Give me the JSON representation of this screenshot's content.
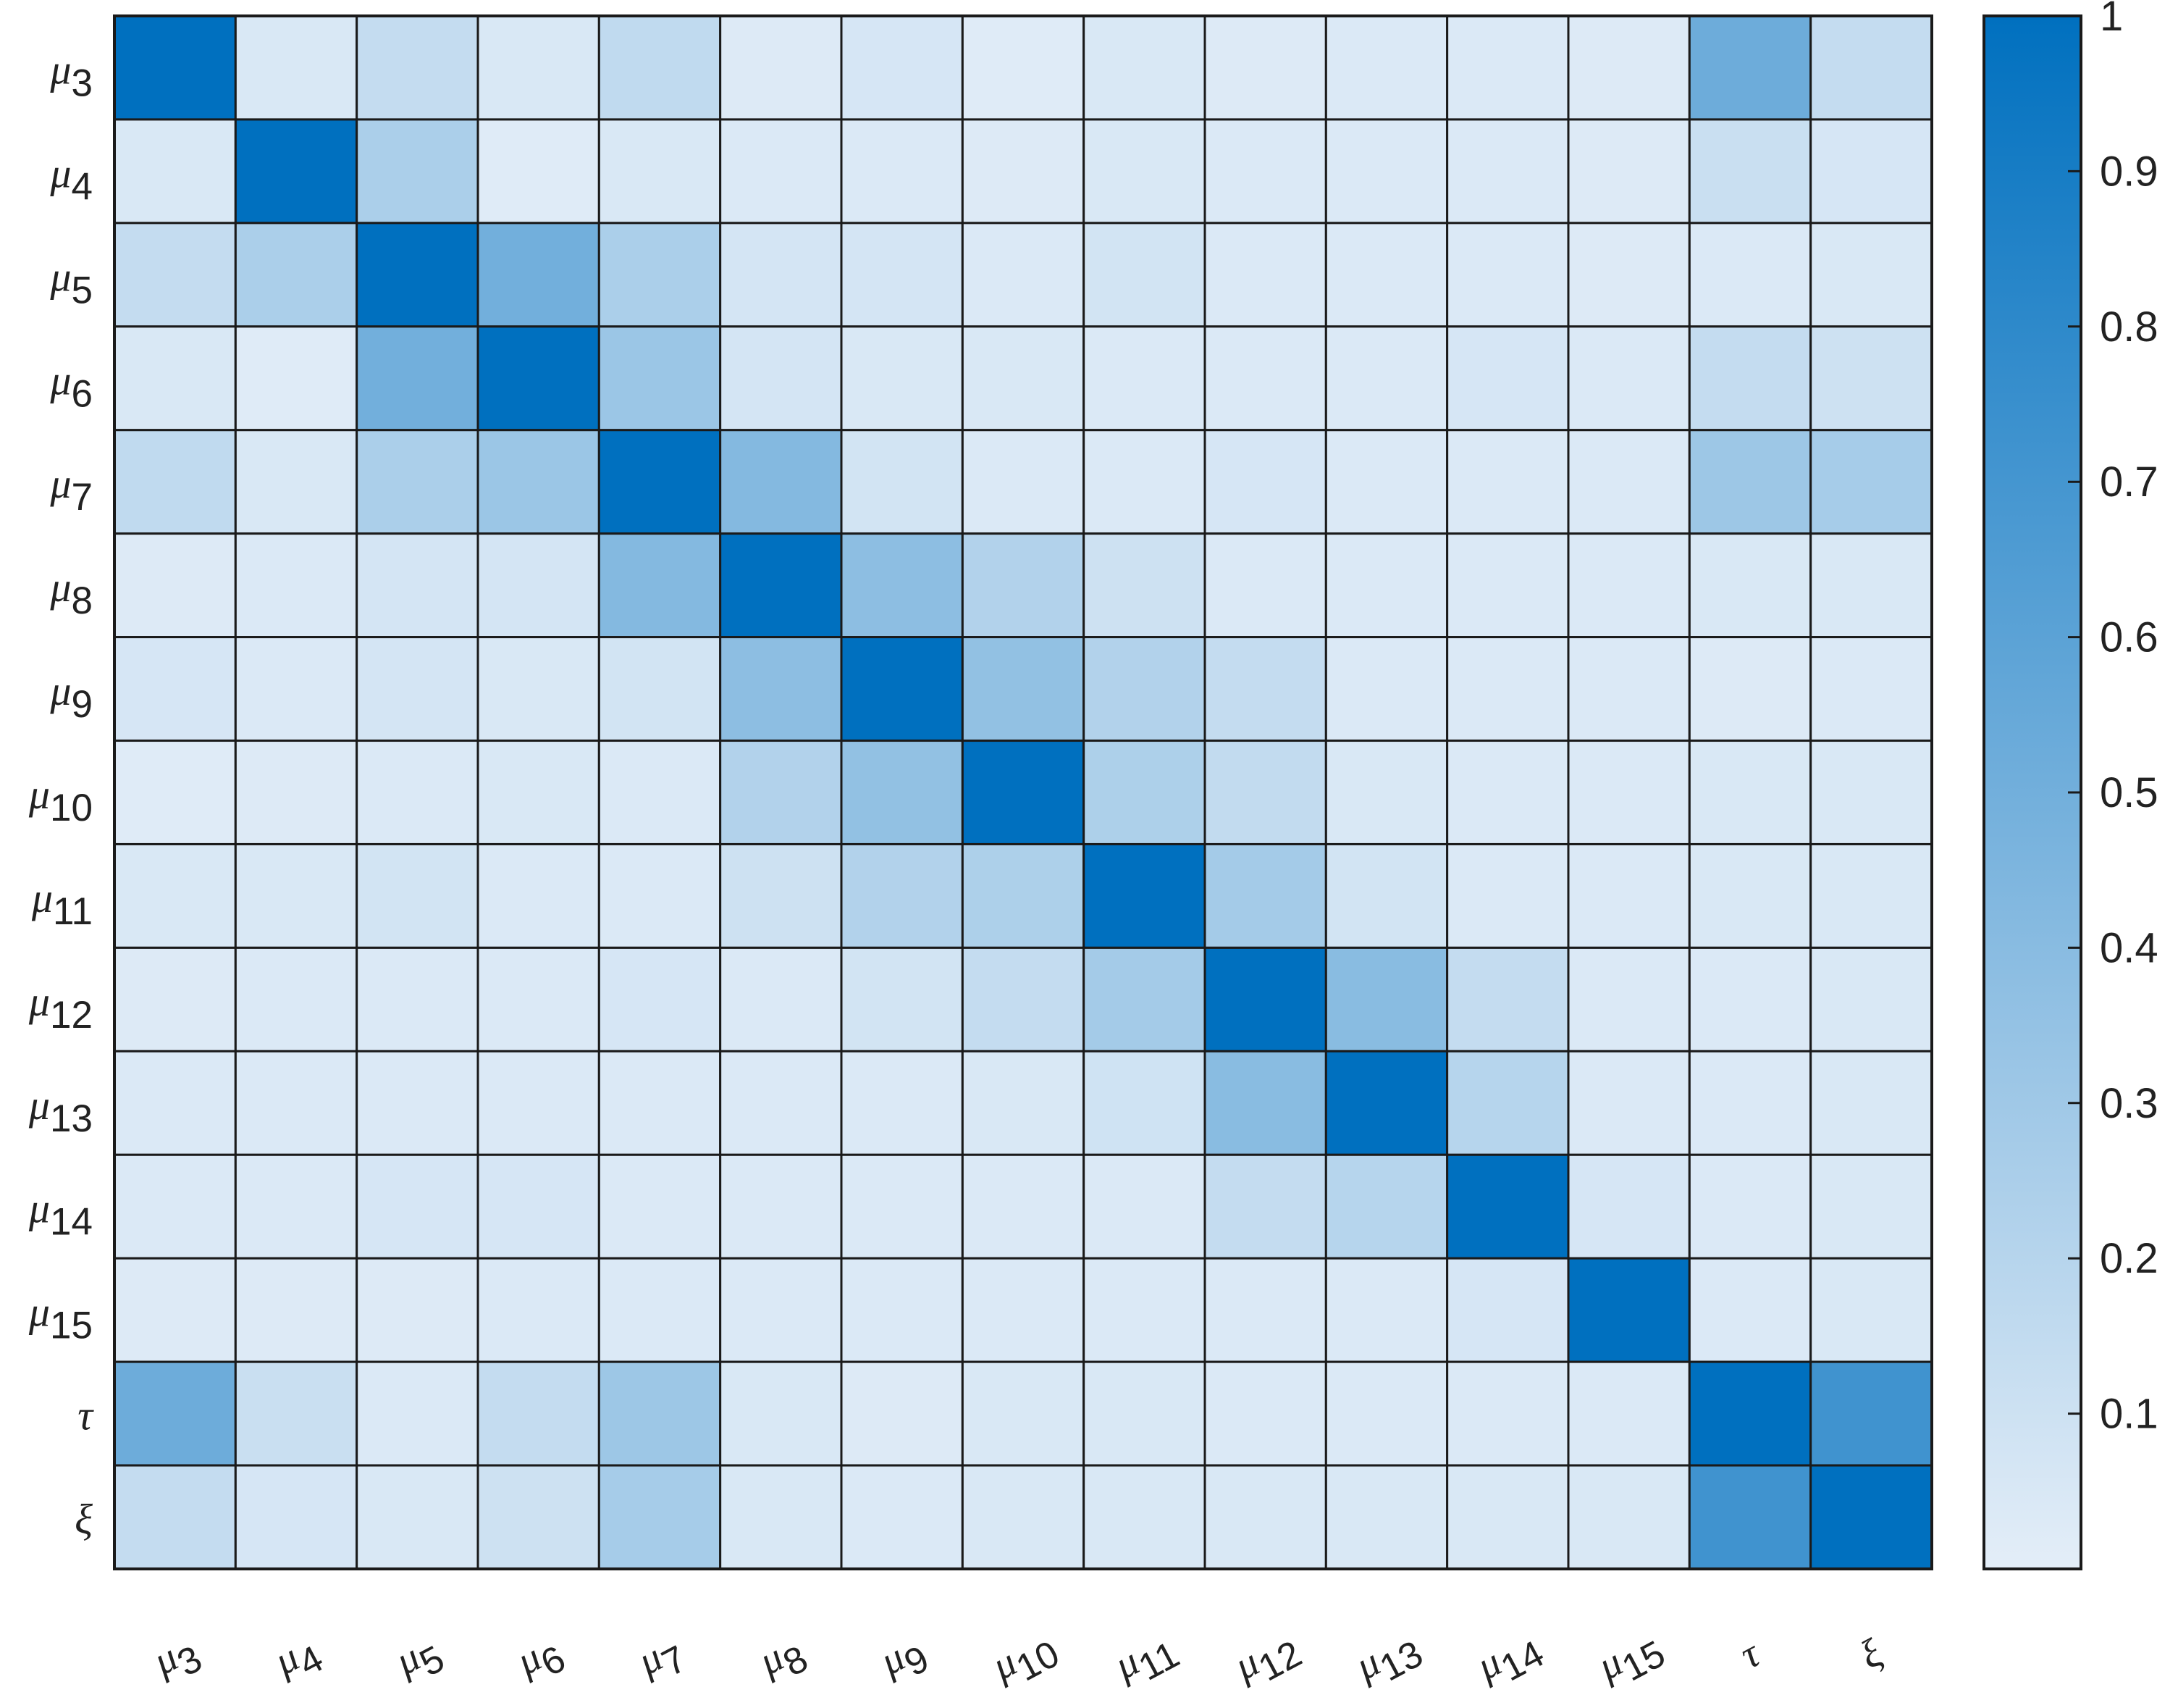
{
  "chart_data": {
    "type": "heatmap",
    "title": "",
    "xlabel": "",
    "ylabel": "",
    "labels": [
      {
        "base": "μ",
        "sub": "3"
      },
      {
        "base": "μ",
        "sub": "4"
      },
      {
        "base": "μ",
        "sub": "5"
      },
      {
        "base": "μ",
        "sub": "6"
      },
      {
        "base": "μ",
        "sub": "7"
      },
      {
        "base": "μ",
        "sub": "8"
      },
      {
        "base": "μ",
        "sub": "9"
      },
      {
        "base": "μ",
        "sub": "10"
      },
      {
        "base": "μ",
        "sub": "11"
      },
      {
        "base": "μ",
        "sub": "12"
      },
      {
        "base": "μ",
        "sub": "13"
      },
      {
        "base": "μ",
        "sub": "14"
      },
      {
        "base": "μ",
        "sub": "15"
      },
      {
        "base": "τ",
        "sub": ""
      },
      {
        "base": "ξ",
        "sub": ""
      }
    ],
    "matrix": [
      [
        1.0,
        0.05,
        0.14,
        0.05,
        0.16,
        0.03,
        0.06,
        0.02,
        0.05,
        0.03,
        0.04,
        0.04,
        0.03,
        0.52,
        0.14
      ],
      [
        0.05,
        1.0,
        0.25,
        0.02,
        0.05,
        0.04,
        0.04,
        0.03,
        0.05,
        0.04,
        0.04,
        0.04,
        0.03,
        0.12,
        0.06
      ],
      [
        0.14,
        0.25,
        1.0,
        0.5,
        0.25,
        0.07,
        0.07,
        0.04,
        0.08,
        0.04,
        0.04,
        0.04,
        0.03,
        0.04,
        0.05
      ],
      [
        0.05,
        0.02,
        0.5,
        1.0,
        0.32,
        0.07,
        0.05,
        0.05,
        0.04,
        0.04,
        0.04,
        0.06,
        0.04,
        0.14,
        0.1
      ],
      [
        0.16,
        0.05,
        0.25,
        0.32,
        1.0,
        0.42,
        0.08,
        0.04,
        0.04,
        0.06,
        0.04,
        0.04,
        0.04,
        0.31,
        0.27
      ],
      [
        0.03,
        0.04,
        0.07,
        0.07,
        0.42,
        1.0,
        0.38,
        0.22,
        0.1,
        0.04,
        0.04,
        0.04,
        0.04,
        0.05,
        0.05
      ],
      [
        0.06,
        0.04,
        0.07,
        0.05,
        0.08,
        0.38,
        1.0,
        0.36,
        0.22,
        0.14,
        0.04,
        0.04,
        0.04,
        0.03,
        0.04
      ],
      [
        0.02,
        0.03,
        0.04,
        0.05,
        0.04,
        0.22,
        0.36,
        1.0,
        0.24,
        0.15,
        0.05,
        0.04,
        0.04,
        0.05,
        0.05
      ],
      [
        0.05,
        0.05,
        0.08,
        0.04,
        0.04,
        0.1,
        0.22,
        0.24,
        1.0,
        0.28,
        0.08,
        0.04,
        0.04,
        0.05,
        0.05
      ],
      [
        0.03,
        0.04,
        0.04,
        0.04,
        0.06,
        0.04,
        0.08,
        0.14,
        0.28,
        1.0,
        0.4,
        0.14,
        0.04,
        0.04,
        0.05
      ],
      [
        0.04,
        0.04,
        0.04,
        0.04,
        0.04,
        0.04,
        0.04,
        0.05,
        0.09,
        0.4,
        1.0,
        0.2,
        0.04,
        0.04,
        0.05
      ],
      [
        0.04,
        0.04,
        0.06,
        0.06,
        0.04,
        0.04,
        0.04,
        0.04,
        0.04,
        0.14,
        0.2,
        1.0,
        0.06,
        0.04,
        0.05
      ],
      [
        0.03,
        0.03,
        0.03,
        0.04,
        0.04,
        0.04,
        0.04,
        0.04,
        0.04,
        0.04,
        0.04,
        0.06,
        1.0,
        0.04,
        0.05
      ],
      [
        0.52,
        0.12,
        0.04,
        0.14,
        0.31,
        0.05,
        0.03,
        0.05,
        0.05,
        0.04,
        0.04,
        0.04,
        0.04,
        1.0,
        0.72
      ],
      [
        0.14,
        0.06,
        0.05,
        0.1,
        0.27,
        0.05,
        0.04,
        0.05,
        0.05,
        0.05,
        0.05,
        0.05,
        0.05,
        0.72,
        1.0
      ]
    ],
    "colorbar": {
      "ticks": [
        0.1,
        0.2,
        0.3,
        0.4,
        0.5,
        0.6,
        0.7,
        0.8,
        0.9,
        1
      ],
      "tick_labels": [
        "0.1",
        "0.2",
        "0.3",
        "0.4",
        "0.5",
        "0.6",
        "0.7",
        "0.8",
        "0.9",
        "1"
      ],
      "range": [
        0.0,
        1.0
      ],
      "color_low": "#e4eef8",
      "color_high": "#0070bf"
    },
    "grid": true,
    "legend": "colorbar right"
  }
}
